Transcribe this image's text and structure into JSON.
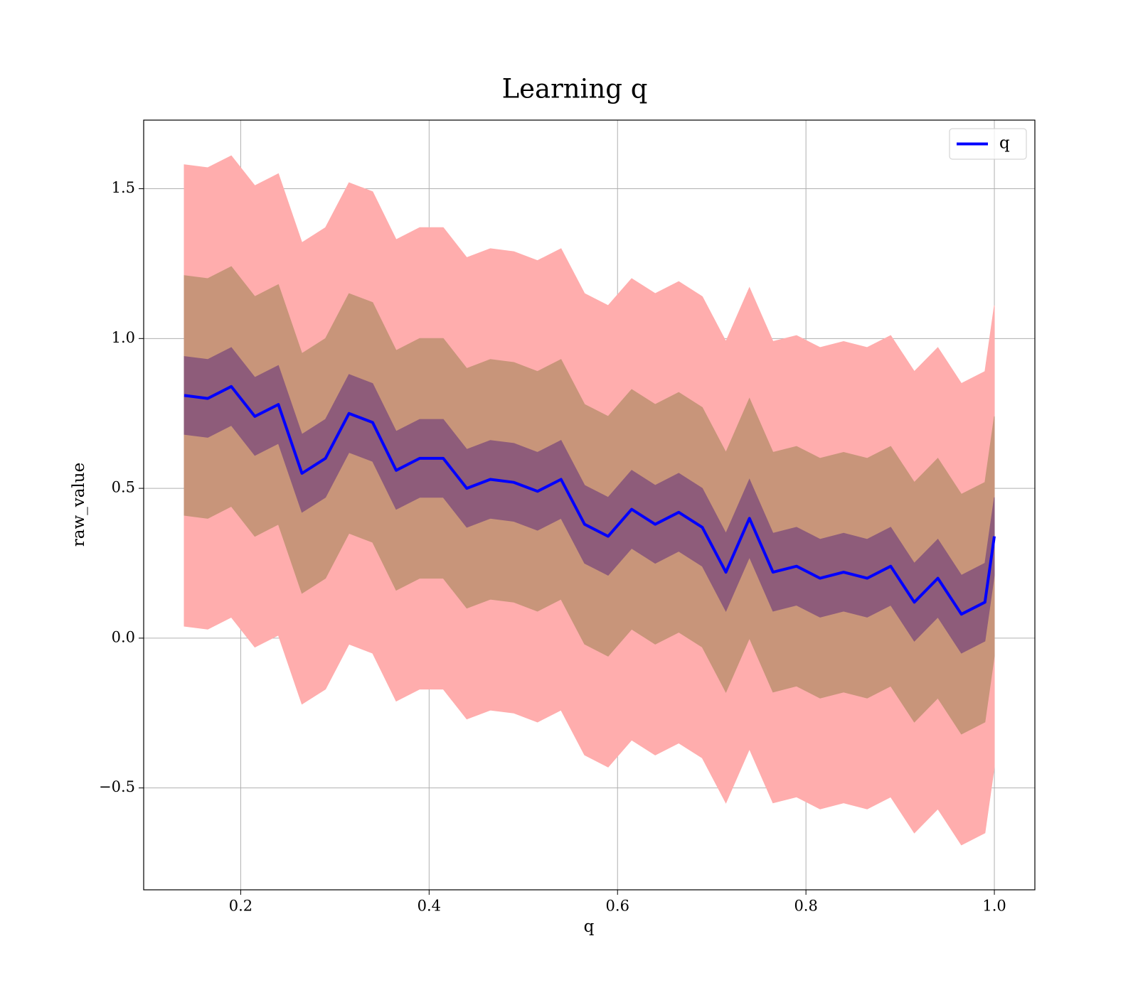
{
  "chart_data": {
    "type": "line",
    "title": "Learning q",
    "x_label": "q",
    "y_label": "raw_value",
    "x": [
      0.14,
      0.165,
      0.19,
      0.215,
      0.24,
      0.265,
      0.29,
      0.315,
      0.34,
      0.365,
      0.39,
      0.415,
      0.44,
      0.465,
      0.49,
      0.515,
      0.54,
      0.565,
      0.59,
      0.615,
      0.64,
      0.665,
      0.69,
      0.715,
      0.74,
      0.765,
      0.79,
      0.815,
      0.84,
      0.865,
      0.89,
      0.915,
      0.94,
      0.965,
      0.99,
      1.0
    ],
    "series": [
      {
        "name": "q",
        "color": "#0000ff",
        "values": [
          0.81,
          0.8,
          0.84,
          0.74,
          0.78,
          0.55,
          0.6,
          0.75,
          0.72,
          0.56,
          0.6,
          0.6,
          0.5,
          0.53,
          0.52,
          0.49,
          0.53,
          0.38,
          0.34,
          0.43,
          0.38,
          0.42,
          0.37,
          0.22,
          0.4,
          0.22,
          0.24,
          0.2,
          0.22,
          0.2,
          0.24,
          0.12,
          0.2,
          0.08,
          0.12,
          0.34
        ]
      }
    ],
    "bands": [
      {
        "color": "#ffadad",
        "lower": [
          0.04,
          0.03,
          0.07,
          -0.03,
          0.01,
          -0.22,
          -0.17,
          -0.02,
          -0.05,
          -0.21,
          -0.17,
          -0.17,
          -0.27,
          -0.24,
          -0.25,
          -0.28,
          -0.24,
          -0.39,
          -0.43,
          -0.34,
          -0.39,
          -0.35,
          -0.4,
          -0.55,
          -0.37,
          -0.55,
          -0.53,
          -0.57,
          -0.55,
          -0.57,
          -0.53,
          -0.65,
          -0.57,
          -0.69,
          -0.65,
          -0.43
        ],
        "upper": [
          1.58,
          1.57,
          1.61,
          1.51,
          1.55,
          1.32,
          1.37,
          1.52,
          1.49,
          1.33,
          1.37,
          1.37,
          1.27,
          1.3,
          1.29,
          1.26,
          1.3,
          1.15,
          1.11,
          1.2,
          1.15,
          1.19,
          1.14,
          0.99,
          1.17,
          0.99,
          1.01,
          0.97,
          0.99,
          0.97,
          1.01,
          0.89,
          0.97,
          0.85,
          0.89,
          1.11
        ]
      },
      {
        "color": "#c8957a",
        "lower": [
          0.41,
          0.4,
          0.44,
          0.34,
          0.38,
          0.15,
          0.2,
          0.35,
          0.32,
          0.16,
          0.2,
          0.2,
          0.1,
          0.13,
          0.12,
          0.09,
          0.13,
          -0.02,
          -0.06,
          0.03,
          -0.02,
          0.02,
          -0.03,
          -0.18,
          0.0,
          -0.18,
          -0.16,
          -0.2,
          -0.18,
          -0.2,
          -0.16,
          -0.28,
          -0.2,
          -0.32,
          -0.28,
          -0.06
        ],
        "upper": [
          1.21,
          1.2,
          1.24,
          1.14,
          1.18,
          0.95,
          1.0,
          1.15,
          1.12,
          0.96,
          1.0,
          1.0,
          0.9,
          0.93,
          0.92,
          0.89,
          0.93,
          0.78,
          0.74,
          0.83,
          0.78,
          0.82,
          0.77,
          0.62,
          0.8,
          0.62,
          0.64,
          0.6,
          0.62,
          0.6,
          0.64,
          0.52,
          0.6,
          0.48,
          0.52,
          0.74
        ]
      },
      {
        "color": "#8e5c7a",
        "lower": [
          0.68,
          0.67,
          0.71,
          0.61,
          0.65,
          0.42,
          0.47,
          0.62,
          0.59,
          0.43,
          0.47,
          0.47,
          0.37,
          0.4,
          0.39,
          0.36,
          0.4,
          0.25,
          0.21,
          0.3,
          0.25,
          0.29,
          0.24,
          0.09,
          0.27,
          0.09,
          0.11,
          0.07,
          0.09,
          0.07,
          0.11,
          -0.01,
          0.07,
          -0.05,
          -0.01,
          0.21
        ],
        "upper": [
          0.94,
          0.93,
          0.97,
          0.87,
          0.91,
          0.68,
          0.73,
          0.88,
          0.85,
          0.69,
          0.73,
          0.73,
          0.63,
          0.66,
          0.65,
          0.62,
          0.66,
          0.51,
          0.47,
          0.56,
          0.51,
          0.55,
          0.5,
          0.35,
          0.53,
          0.35,
          0.37,
          0.33,
          0.35,
          0.33,
          0.37,
          0.25,
          0.33,
          0.21,
          0.25,
          0.47
        ]
      }
    ],
    "xlim": [
      0.097,
      1.043
    ],
    "ylim": [
      -0.84,
      1.729
    ],
    "xticks": [
      0.2,
      0.4,
      0.6,
      0.8,
      {
        "value": 1,
        "label": "1.0"
      }
    ],
    "yticks": [
      {
        "value": -0.5,
        "label": "−0.5"
      },
      {
        "value": 0,
        "label": "0.0"
      },
      0.5,
      {
        "value": 1,
        "label": "1.0"
      },
      1.5
    ],
    "grid": true,
    "legend": "upper right"
  }
}
